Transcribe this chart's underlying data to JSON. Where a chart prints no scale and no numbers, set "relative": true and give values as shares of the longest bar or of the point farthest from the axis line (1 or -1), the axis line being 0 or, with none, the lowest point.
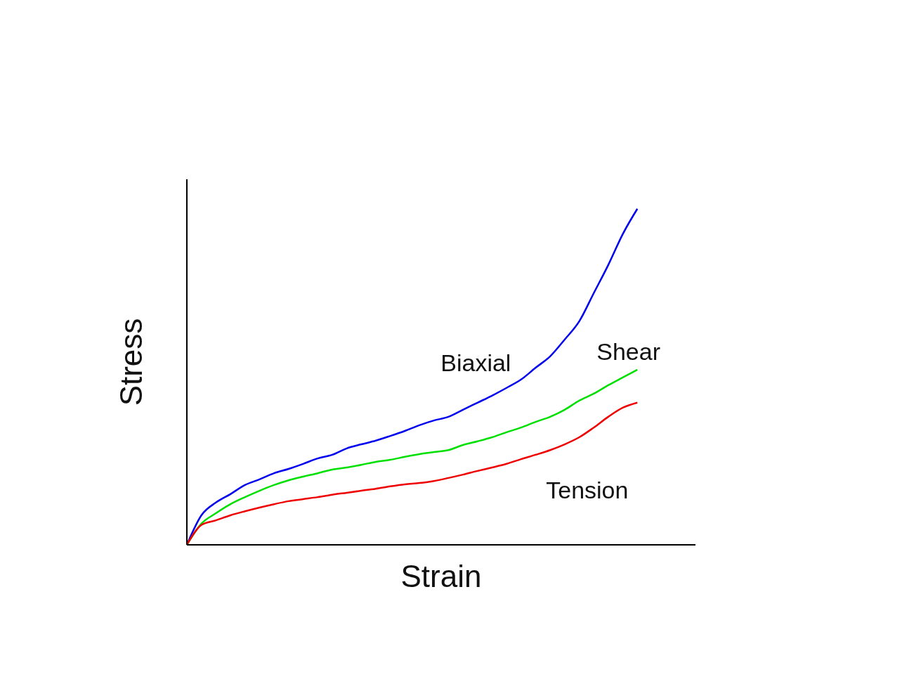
{
  "chart_data": {
    "type": "line",
    "xlabel": "Strain",
    "ylabel": "Stress",
    "relative": true,
    "grid": false,
    "legend": false,
    "marker": "none",
    "line_style": "solid",
    "categories": [
      null,
      null,
      null,
      null,
      null,
      null,
      null,
      null,
      null,
      null,
      null,
      null,
      null,
      null,
      null,
      null,
      null,
      null,
      null,
      null,
      null,
      null,
      null,
      null,
      null,
      null,
      null,
      null,
      null,
      null,
      null,
      null,
      null,
      null,
      null,
      null
    ],
    "series": [
      {
        "name": "Biaxial",
        "color": "#0000ee",
        "values": [
          0,
          0.088,
          0.126,
          0.151,
          0.178,
          0.195,
          0.213,
          0.226,
          0.241,
          0.257,
          0.268,
          0.287,
          0.299,
          0.31,
          0.324,
          0.339,
          0.356,
          0.37,
          0.381,
          0.402,
          0.423,
          0.444,
          0.467,
          0.492,
          0.527,
          0.561,
          0.611,
          0.665,
          0.749,
          0.833,
          0.925,
          1.0,
          null,
          null,
          null,
          null
        ]
      },
      {
        "name": "Shear",
        "color": "#00e000",
        "values": [
          0,
          0.063,
          0.094,
          0.121,
          0.142,
          0.161,
          0.178,
          0.192,
          0.203,
          0.213,
          0.224,
          0.23,
          0.238,
          0.247,
          0.253,
          0.262,
          0.27,
          0.276,
          0.282,
          0.297,
          0.308,
          0.32,
          0.335,
          0.349,
          0.366,
          0.381,
          0.402,
          0.429,
          0.45,
          0.475,
          0.498,
          0.521,
          null,
          null,
          null,
          null
        ]
      },
      {
        "name": "Tension",
        "color": "#ee0000",
        "values": [
          0,
          0.059,
          0.073,
          0.088,
          0.1,
          0.111,
          0.121,
          0.13,
          0.136,
          0.142,
          0.149,
          0.155,
          0.161,
          0.167,
          0.174,
          0.18,
          0.184,
          0.19,
          0.199,
          0.209,
          0.22,
          0.23,
          0.241,
          0.255,
          0.268,
          0.282,
          0.299,
          0.32,
          0.349,
          0.381,
          0.408,
          0.423,
          null,
          null,
          null,
          null
        ]
      }
    ]
  }
}
